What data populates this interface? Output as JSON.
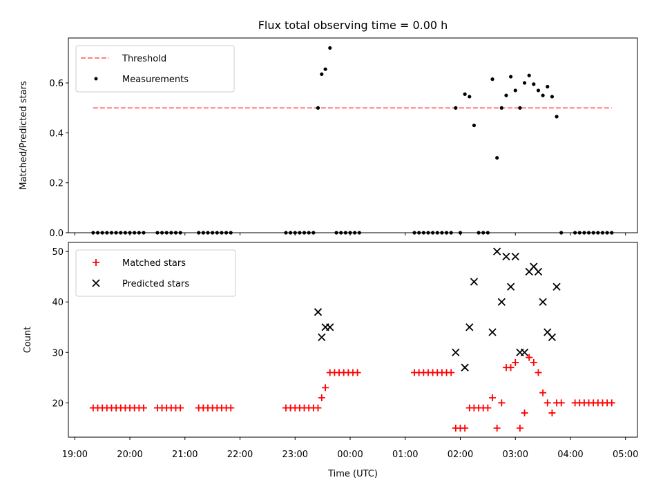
{
  "title": "Flux total observing time = 0.00 h",
  "colors": {
    "threshold": "#ff7f7f",
    "measurement": "#000000",
    "matched": "#ff0000",
    "predicted": "#000000"
  },
  "chart_data": [
    {
      "type": "scatter",
      "panel": "top",
      "ylabel": "Matched/Predicted stars",
      "xlim": [
        "18:53",
        "05:13"
      ],
      "ylim": [
        0,
        0.78
      ],
      "yticks": [
        "0.0",
        "0.2",
        "0.4",
        "0.6"
      ],
      "legend_position": "upper left",
      "threshold": {
        "name": "Threshold",
        "value": 0.5,
        "x_start": "19:20",
        "x_end": "04:45"
      },
      "series": [
        {
          "name": "Measurements",
          "points": [
            [
              "19:20",
              0
            ],
            [
              "19:25",
              0
            ],
            [
              "19:30",
              0
            ],
            [
              "19:35",
              0
            ],
            [
              "19:40",
              0
            ],
            [
              "19:45",
              0
            ],
            [
              "19:50",
              0
            ],
            [
              "19:55",
              0
            ],
            [
              "20:00",
              0
            ],
            [
              "20:05",
              0
            ],
            [
              "20:10",
              0
            ],
            [
              "20:15",
              0
            ],
            [
              "20:30",
              0
            ],
            [
              "20:35",
              0
            ],
            [
              "20:40",
              0
            ],
            [
              "20:45",
              0
            ],
            [
              "20:50",
              0
            ],
            [
              "20:55",
              0
            ],
            [
              "21:15",
              0
            ],
            [
              "21:20",
              0
            ],
            [
              "21:25",
              0
            ],
            [
              "21:30",
              0
            ],
            [
              "21:35",
              0
            ],
            [
              "21:40",
              0
            ],
            [
              "21:45",
              0
            ],
            [
              "21:50",
              0
            ],
            [
              "22:50",
              0
            ],
            [
              "22:55",
              0
            ],
            [
              "23:00",
              0
            ],
            [
              "23:05",
              0
            ],
            [
              "23:10",
              0
            ],
            [
              "23:15",
              0
            ],
            [
              "23:20",
              0
            ],
            [
              "23:25",
              0.5
            ],
            [
              "23:29",
              0.635
            ],
            [
              "23:33",
              0.655
            ],
            [
              "23:38",
              0.74
            ],
            [
              "23:45",
              0
            ],
            [
              "23:50",
              0
            ],
            [
              "23:55",
              0
            ],
            [
              "00:00",
              0
            ],
            [
              "00:05",
              0
            ],
            [
              "00:10",
              0
            ],
            [
              "01:10",
              0
            ],
            [
              "01:15",
              0
            ],
            [
              "01:20",
              0
            ],
            [
              "01:25",
              0
            ],
            [
              "01:30",
              0
            ],
            [
              "01:35",
              0
            ],
            [
              "01:40",
              0
            ],
            [
              "01:45",
              0
            ],
            [
              "01:50",
              0
            ],
            [
              "01:55",
              0.5
            ],
            [
              "02:00",
              0
            ],
            [
              "02:05",
              0.555
            ],
            [
              "02:10",
              0.545
            ],
            [
              "02:15",
              0.43
            ],
            [
              "02:20",
              0
            ],
            [
              "02:25",
              0
            ],
            [
              "02:30",
              0
            ],
            [
              "02:35",
              0.615
            ],
            [
              "02:40",
              0.3
            ],
            [
              "02:45",
              0.5
            ],
            [
              "02:50",
              0.55
            ],
            [
              "02:55",
              0.625
            ],
            [
              "03:00",
              0.57
            ],
            [
              "03:05",
              0.5
            ],
            [
              "03:10",
              0.6
            ],
            [
              "03:15",
              0.63
            ],
            [
              "03:20",
              0.595
            ],
            [
              "03:25",
              0.57
            ],
            [
              "03:30",
              0.55
            ],
            [
              "03:35",
              0.585
            ],
            [
              "03:40",
              0.545
            ],
            [
              "03:45",
              0.465
            ],
            [
              "03:50",
              0
            ],
            [
              "04:05",
              0
            ],
            [
              "04:10",
              0
            ],
            [
              "04:15",
              0
            ],
            [
              "04:20",
              0
            ],
            [
              "04:25",
              0
            ],
            [
              "04:30",
              0
            ],
            [
              "04:35",
              0
            ],
            [
              "04:40",
              0
            ],
            [
              "04:45",
              0
            ]
          ]
        }
      ]
    },
    {
      "type": "scatter",
      "panel": "bottom",
      "xlabel": "Time (UTC)",
      "ylabel": "Count",
      "xlim": [
        "18:53",
        "05:13"
      ],
      "ylim": [
        13.2,
        51.8
      ],
      "yticks": [
        "20",
        "30",
        "40",
        "50"
      ],
      "xticks": [
        "19:00",
        "20:00",
        "21:00",
        "22:00",
        "23:00",
        "00:00",
        "01:00",
        "02:00",
        "03:00",
        "04:00",
        "05:00"
      ],
      "legend_position": "upper left",
      "series": [
        {
          "name": "Matched stars",
          "marker": "+",
          "points": [
            [
              "19:20",
              19
            ],
            [
              "19:25",
              19
            ],
            [
              "19:30",
              19
            ],
            [
              "19:35",
              19
            ],
            [
              "19:40",
              19
            ],
            [
              "19:45",
              19
            ],
            [
              "19:50",
              19
            ],
            [
              "19:55",
              19
            ],
            [
              "20:00",
              19
            ],
            [
              "20:05",
              19
            ],
            [
              "20:10",
              19
            ],
            [
              "20:15",
              19
            ],
            [
              "20:30",
              19
            ],
            [
              "20:35",
              19
            ],
            [
              "20:40",
              19
            ],
            [
              "20:45",
              19
            ],
            [
              "20:50",
              19
            ],
            [
              "20:55",
              19
            ],
            [
              "21:15",
              19
            ],
            [
              "21:20",
              19
            ],
            [
              "21:25",
              19
            ],
            [
              "21:30",
              19
            ],
            [
              "21:35",
              19
            ],
            [
              "21:40",
              19
            ],
            [
              "21:45",
              19
            ],
            [
              "21:50",
              19
            ],
            [
              "22:50",
              19
            ],
            [
              "22:55",
              19
            ],
            [
              "23:00",
              19
            ],
            [
              "23:05",
              19
            ],
            [
              "23:10",
              19
            ],
            [
              "23:15",
              19
            ],
            [
              "23:20",
              19
            ],
            [
              "23:25",
              19
            ],
            [
              "23:29",
              21
            ],
            [
              "23:33",
              23
            ],
            [
              "23:38",
              26
            ],
            [
              "23:43",
              26
            ],
            [
              "23:48",
              26
            ],
            [
              "23:53",
              26
            ],
            [
              "23:58",
              26
            ],
            [
              "00:03",
              26
            ],
            [
              "00:08",
              26
            ],
            [
              "01:10",
              26
            ],
            [
              "01:15",
              26
            ],
            [
              "01:20",
              26
            ],
            [
              "01:25",
              26
            ],
            [
              "01:30",
              26
            ],
            [
              "01:35",
              26
            ],
            [
              "01:40",
              26
            ],
            [
              "01:45",
              26
            ],
            [
              "01:50",
              26
            ],
            [
              "01:55",
              15
            ],
            [
              "02:00",
              15
            ],
            [
              "02:05",
              15
            ],
            [
              "02:10",
              19
            ],
            [
              "02:15",
              19
            ],
            [
              "02:20",
              19
            ],
            [
              "02:25",
              19
            ],
            [
              "02:30",
              19
            ],
            [
              "02:35",
              21
            ],
            [
              "02:40",
              15
            ],
            [
              "02:45",
              20
            ],
            [
              "02:50",
              27
            ],
            [
              "02:55",
              27
            ],
            [
              "03:00",
              28
            ],
            [
              "03:05",
              15
            ],
            [
              "03:10",
              18
            ],
            [
              "03:15",
              29
            ],
            [
              "03:20",
              28
            ],
            [
              "03:25",
              26
            ],
            [
              "03:30",
              22
            ],
            [
              "03:35",
              20
            ],
            [
              "03:40",
              18
            ],
            [
              "03:45",
              20
            ],
            [
              "03:50",
              20
            ],
            [
              "04:05",
              20
            ],
            [
              "04:10",
              20
            ],
            [
              "04:15",
              20
            ],
            [
              "04:20",
              20
            ],
            [
              "04:25",
              20
            ],
            [
              "04:30",
              20
            ],
            [
              "04:35",
              20
            ],
            [
              "04:40",
              20
            ],
            [
              "04:45",
              20
            ]
          ]
        },
        {
          "name": "Predicted stars",
          "marker": "x",
          "points": [
            [
              "23:25",
              38
            ],
            [
              "23:29",
              33
            ],
            [
              "23:33",
              35
            ],
            [
              "23:38",
              35
            ],
            [
              "01:55",
              30
            ],
            [
              "02:05",
              27
            ],
            [
              "02:10",
              35
            ],
            [
              "02:15",
              44
            ],
            [
              "02:35",
              34
            ],
            [
              "02:40",
              50
            ],
            [
              "02:45",
              40
            ],
            [
              "02:50",
              49
            ],
            [
              "02:55",
              43
            ],
            [
              "03:00",
              49
            ],
            [
              "03:05",
              30
            ],
            [
              "03:10",
              30
            ],
            [
              "03:15",
              46
            ],
            [
              "03:20",
              47
            ],
            [
              "03:25",
              46
            ],
            [
              "03:30",
              40
            ],
            [
              "03:35",
              34
            ],
            [
              "03:40",
              33
            ],
            [
              "03:45",
              43
            ]
          ]
        }
      ]
    }
  ]
}
